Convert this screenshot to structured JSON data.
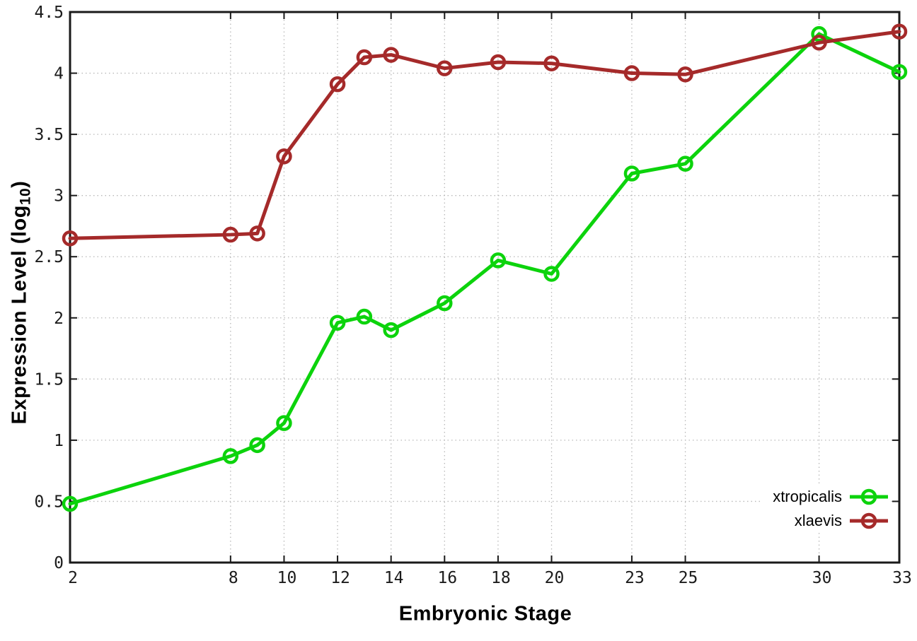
{
  "chart_data": {
    "type": "line",
    "title": "",
    "xlabel": "Embryonic Stage",
    "ylabel": {
      "prefix": "Expression Level (log",
      "subscript": "10",
      "suffix": ")"
    },
    "xlim": [
      2,
      33
    ],
    "ylim": [
      0,
      4.5
    ],
    "x_ticks": [
      2,
      8,
      10,
      12,
      14,
      16,
      18,
      20,
      23,
      25,
      30,
      33
    ],
    "y_ticks": [
      0,
      0.5,
      1,
      1.5,
      2,
      2.5,
      3,
      3.5,
      4,
      4.5
    ],
    "grid": true,
    "grid_style": "dotted",
    "legend_position": "inside-right-bottom",
    "x": [
      2,
      8,
      9,
      10,
      12,
      13,
      14,
      16,
      18,
      20,
      23,
      25,
      30,
      33
    ],
    "series": [
      {
        "name": "xtropicalis",
        "color": "#0cd30c",
        "marker": "open-circle",
        "values": [
          0.48,
          0.87,
          0.96,
          1.14,
          1.96,
          2.01,
          1.9,
          2.12,
          2.47,
          2.36,
          3.18,
          3.26,
          4.32,
          4.01
        ]
      },
      {
        "name": "xlaevis",
        "color": "#a52a2a",
        "marker": "open-circle",
        "values": [
          2.65,
          2.68,
          2.69,
          3.32,
          3.91,
          4.13,
          4.15,
          4.04,
          4.09,
          4.08,
          4.0,
          3.99,
          4.25,
          4.34
        ]
      }
    ],
    "colors": {
      "axis": "#1a1a1a",
      "grid": "#b8b8b8",
      "tick_label": "#1b1b1b"
    }
  }
}
